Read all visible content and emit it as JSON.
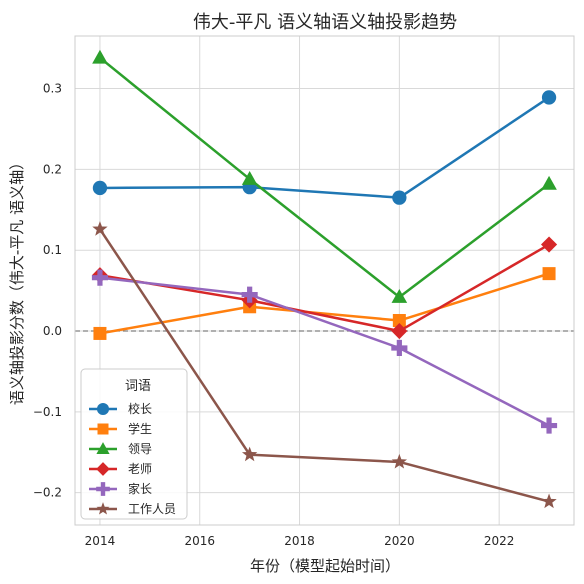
{
  "chart_data": {
    "type": "line",
    "title": "伟大-平凡 语义轴语义轴投影趋势",
    "xlabel": "年份（模型起始时间）",
    "ylabel": "语义轴投影分数（伟大-平凡 语义轴）",
    "x": [
      2014,
      2017,
      2020,
      2023
    ],
    "xlim": [
      2013.5,
      2023.5
    ],
    "ylim": [
      -0.24,
      0.365
    ],
    "xticks": [
      2014,
      2016,
      2018,
      2020,
      2022
    ],
    "xtick_labels": [
      "2014",
      "2016",
      "2018",
      "2020",
      "2022"
    ],
    "yticks": [
      -0.2,
      -0.1,
      0.0,
      0.1,
      0.2,
      0.3
    ],
    "ytick_labels": [
      "−0.2",
      "−0.1",
      "0.0",
      "0.1",
      "0.2",
      "0.3"
    ],
    "grid": true,
    "reference_line": 0.0,
    "legend": {
      "title": "词语",
      "position": "lower-left"
    },
    "series": [
      {
        "name": "校长",
        "color": "#1f77b4",
        "marker": "circle",
        "values": [
          0.177,
          0.178,
          0.165,
          0.289
        ]
      },
      {
        "name": "学生",
        "color": "#ff7f0e",
        "marker": "square",
        "values": [
          -0.003,
          0.03,
          0.013,
          0.071
        ]
      },
      {
        "name": "领导",
        "color": "#2ca02c",
        "marker": "triangle",
        "values": [
          0.338,
          0.188,
          0.042,
          0.182
        ]
      },
      {
        "name": "老师",
        "color": "#d62728",
        "marker": "diamond",
        "values": [
          0.069,
          0.038,
          0.0,
          0.107
        ]
      },
      {
        "name": "家长",
        "color": "#9467bd",
        "marker": "plus",
        "values": [
          0.066,
          0.045,
          -0.021,
          -0.117
        ]
      },
      {
        "name": "工作人员",
        "color": "#8c564b",
        "marker": "star",
        "values": [
          0.126,
          -0.153,
          -0.162,
          -0.211
        ]
      }
    ]
  }
}
